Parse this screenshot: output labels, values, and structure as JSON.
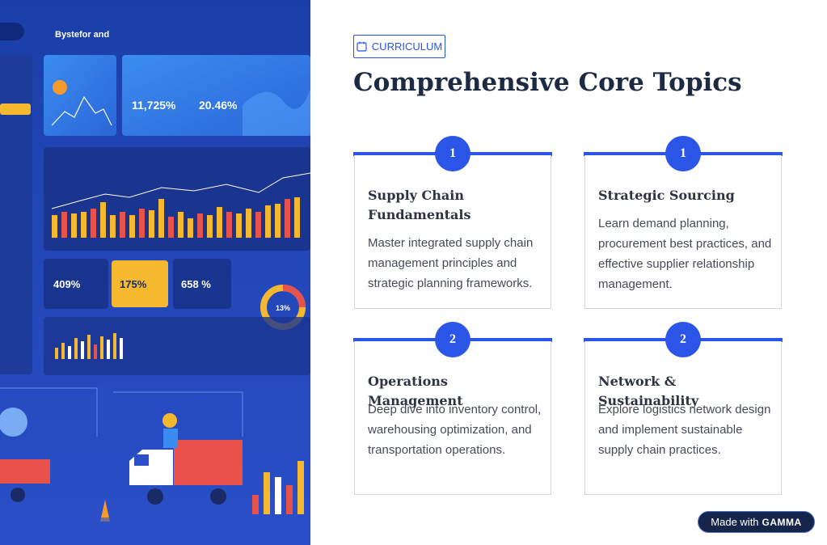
{
  "illustration": {
    "brand": "Bystefor and",
    "stats": [
      "11,725%",
      "20.46%",
      "409%",
      "175%",
      "658 %",
      "13%"
    ]
  },
  "badge": "CURRICULUM",
  "title": "Comprehensive Core Topics",
  "cards": [
    {
      "number": "1",
      "title": "Supply Chain Fundamentals",
      "body": "Master integrated supply chain management principles and strategic planning frameworks."
    },
    {
      "number": "1",
      "title": "Strategic Sourcing",
      "body": "Learn demand planning, procurement best practices, and effective supplier relationship management."
    },
    {
      "number": "2",
      "title": "Operations Management",
      "body": "Deep dive into inventory control, warehousing optimization, and transportation operations."
    },
    {
      "number": "2",
      "title": "Network & Sustainability",
      "body": "Explore logistics network design and implement sustainable supply chain practices."
    }
  ],
  "footer": {
    "prefix": "Made with",
    "brand": "GAMMA"
  }
}
